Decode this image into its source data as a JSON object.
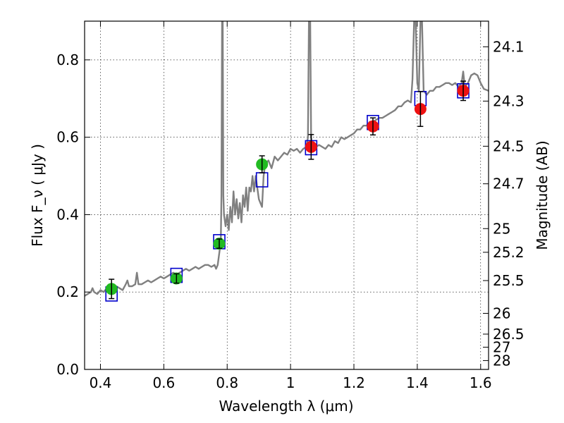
{
  "chart_data": {
    "type": "scatter",
    "xlabel": "Wavelength  λ (μm)",
    "ylabel": "Flux  F_ν  ( μJy )",
    "ylabel_right": "Magnitude (AB)",
    "xlim": [
      0.35,
      1.625
    ],
    "ylim": [
      0.0,
      0.9
    ],
    "grid": true,
    "x_ticks": [
      0.4,
      0.6,
      0.8,
      1.0,
      1.2,
      1.4,
      1.6
    ],
    "x_tick_labels": [
      "0.4",
      "0.6",
      "0.8",
      "1",
      "1.2",
      "1.4",
      "1.6"
    ],
    "y_ticks": [
      0.0,
      0.2,
      0.4,
      0.6,
      0.8
    ],
    "y_tick_labels": [
      "0.0",
      "0.2",
      "0.4",
      "0.6",
      "0.8"
    ],
    "right_ticks": [
      {
        "label": "24.1",
        "flux": 0.8337
      },
      {
        "label": "24.3",
        "flux": 0.6934
      },
      {
        "label": "24.5",
        "flux": 0.5768
      },
      {
        "label": "24.7",
        "flux": 0.4797
      },
      {
        "label": "25",
        "flux": 0.3639
      },
      {
        "label": "25.2",
        "flux": 0.3027
      },
      {
        "label": "25.5",
        "flux": 0.2296
      },
      {
        "label": "26",
        "flux": 0.1449
      },
      {
        "label": "26.5",
        "flux": 0.0912
      },
      {
        "label": "27",
        "flux": 0.0575
      },
      {
        "label": "28",
        "flux": 0.0229
      }
    ],
    "series": [
      {
        "kind": "model_spectrum",
        "color": "#808080",
        "points": [
          [
            0.35,
            0.19
          ],
          [
            0.36,
            0.195
          ],
          [
            0.37,
            0.2
          ],
          [
            0.375,
            0.21
          ],
          [
            0.38,
            0.2
          ],
          [
            0.39,
            0.195
          ],
          [
            0.4,
            0.205
          ],
          [
            0.41,
            0.2
          ],
          [
            0.42,
            0.21
          ],
          [
            0.43,
            0.2
          ],
          [
            0.44,
            0.205
          ],
          [
            0.45,
            0.215
          ],
          [
            0.46,
            0.21
          ],
          [
            0.47,
            0.205
          ],
          [
            0.48,
            0.22
          ],
          [
            0.485,
            0.23
          ],
          [
            0.49,
            0.215
          ],
          [
            0.5,
            0.215
          ],
          [
            0.51,
            0.22
          ],
          [
            0.515,
            0.25
          ],
          [
            0.52,
            0.22
          ],
          [
            0.53,
            0.22
          ],
          [
            0.54,
            0.225
          ],
          [
            0.55,
            0.23
          ],
          [
            0.56,
            0.225
          ],
          [
            0.57,
            0.23
          ],
          [
            0.58,
            0.235
          ],
          [
            0.59,
            0.24
          ],
          [
            0.6,
            0.235
          ],
          [
            0.61,
            0.24
          ],
          [
            0.62,
            0.245
          ],
          [
            0.63,
            0.25
          ],
          [
            0.64,
            0.245
          ],
          [
            0.65,
            0.25
          ],
          [
            0.66,
            0.255
          ],
          [
            0.67,
            0.26
          ],
          [
            0.68,
            0.255
          ],
          [
            0.69,
            0.26
          ],
          [
            0.7,
            0.265
          ],
          [
            0.71,
            0.26
          ],
          [
            0.72,
            0.265
          ],
          [
            0.73,
            0.27
          ],
          [
            0.74,
            0.27
          ],
          [
            0.75,
            0.265
          ],
          [
            0.76,
            0.27
          ],
          [
            0.765,
            0.26
          ],
          [
            0.77,
            0.27
          ],
          [
            0.775,
            0.3
          ],
          [
            0.78,
            0.33
          ],
          [
            0.782,
            0.45
          ],
          [
            0.784,
            0.9
          ],
          [
            0.786,
            0.9
          ],
          [
            0.788,
            0.45
          ],
          [
            0.79,
            0.4
          ],
          [
            0.795,
            0.37
          ],
          [
            0.8,
            0.4
          ],
          [
            0.805,
            0.36
          ],
          [
            0.81,
            0.42
          ],
          [
            0.815,
            0.38
          ],
          [
            0.82,
            0.46
          ],
          [
            0.825,
            0.4
          ],
          [
            0.83,
            0.44
          ],
          [
            0.835,
            0.39
          ],
          [
            0.84,
            0.43
          ],
          [
            0.845,
            0.38
          ],
          [
            0.85,
            0.45
          ],
          [
            0.855,
            0.42
          ],
          [
            0.86,
            0.47
          ],
          [
            0.865,
            0.41
          ],
          [
            0.87,
            0.47
          ],
          [
            0.875,
            0.46
          ],
          [
            0.88,
            0.5
          ],
          [
            0.885,
            0.46
          ],
          [
            0.89,
            0.5
          ],
          [
            0.895,
            0.47
          ],
          [
            0.9,
            0.44
          ],
          [
            0.905,
            0.43
          ],
          [
            0.91,
            0.42
          ],
          [
            0.915,
            0.5
          ],
          [
            0.92,
            0.53
          ],
          [
            0.93,
            0.54
          ],
          [
            0.94,
            0.52
          ],
          [
            0.95,
            0.55
          ],
          [
            0.96,
            0.54
          ],
          [
            0.97,
            0.55
          ],
          [
            0.98,
            0.56
          ],
          [
            0.99,
            0.555
          ],
          [
            1.0,
            0.57
          ],
          [
            1.01,
            0.565
          ],
          [
            1.02,
            0.57
          ],
          [
            1.03,
            0.56
          ],
          [
            1.04,
            0.57
          ],
          [
            1.05,
            0.575
          ],
          [
            1.055,
            0.6
          ],
          [
            1.058,
            0.9
          ],
          [
            1.062,
            0.9
          ],
          [
            1.065,
            0.6
          ],
          [
            1.07,
            0.57
          ],
          [
            1.08,
            0.575
          ],
          [
            1.09,
            0.58
          ],
          [
            1.1,
            0.575
          ],
          [
            1.11,
            0.57
          ],
          [
            1.12,
            0.58
          ],
          [
            1.13,
            0.575
          ],
          [
            1.14,
            0.59
          ],
          [
            1.15,
            0.585
          ],
          [
            1.16,
            0.6
          ],
          [
            1.17,
            0.595
          ],
          [
            1.18,
            0.6
          ],
          [
            1.19,
            0.605
          ],
          [
            1.2,
            0.61
          ],
          [
            1.21,
            0.62
          ],
          [
            1.22,
            0.62
          ],
          [
            1.23,
            0.63
          ],
          [
            1.24,
            0.63
          ],
          [
            1.25,
            0.64
          ],
          [
            1.26,
            0.64
          ],
          [
            1.27,
            0.645
          ],
          [
            1.28,
            0.65
          ],
          [
            1.29,
            0.65
          ],
          [
            1.3,
            0.655
          ],
          [
            1.31,
            0.66
          ],
          [
            1.32,
            0.665
          ],
          [
            1.33,
            0.67
          ],
          [
            1.34,
            0.68
          ],
          [
            1.35,
            0.68
          ],
          [
            1.36,
            0.69
          ],
          [
            1.37,
            0.695
          ],
          [
            1.38,
            0.69
          ],
          [
            1.385,
            0.75
          ],
          [
            1.39,
            0.9
          ],
          [
            1.395,
            0.9
          ],
          [
            1.4,
            0.74
          ],
          [
            1.405,
            0.72
          ],
          [
            1.41,
            0.9
          ],
          [
            1.415,
            0.9
          ],
          [
            1.42,
            0.72
          ],
          [
            1.43,
            0.71
          ],
          [
            1.44,
            0.72
          ],
          [
            1.45,
            0.72
          ],
          [
            1.46,
            0.73
          ],
          [
            1.47,
            0.73
          ],
          [
            1.48,
            0.735
          ],
          [
            1.49,
            0.74
          ],
          [
            1.5,
            0.74
          ],
          [
            1.51,
            0.735
          ],
          [
            1.52,
            0.74
          ],
          [
            1.53,
            0.73
          ],
          [
            1.54,
            0.74
          ],
          [
            1.545,
            0.77
          ],
          [
            1.55,
            0.73
          ],
          [
            1.56,
            0.74
          ],
          [
            1.57,
            0.76
          ],
          [
            1.58,
            0.765
          ],
          [
            1.59,
            0.76
          ],
          [
            1.6,
            0.74
          ],
          [
            1.61,
            0.725
          ],
          [
            1.625,
            0.72
          ]
        ]
      },
      {
        "kind": "model_photometry",
        "marker": "open-square",
        "color": "#0000cc",
        "points": [
          {
            "x": 0.435,
            "y": 0.195
          },
          {
            "x": 0.64,
            "y": 0.243
          },
          {
            "x": 0.775,
            "y": 0.33
          },
          {
            "x": 0.91,
            "y": 0.49
          },
          {
            "x": 1.065,
            "y": 0.573
          },
          {
            "x": 1.26,
            "y": 0.638
          },
          {
            "x": 1.41,
            "y": 0.7
          },
          {
            "x": 1.545,
            "y": 0.72
          }
        ]
      },
      {
        "kind": "observed_optical",
        "marker": "filled-circle",
        "color": "#22bb22",
        "points": [
          {
            "x": 0.435,
            "y": 0.208,
            "err": 0.025
          },
          {
            "x": 0.64,
            "y": 0.235,
            "err": 0.012
          },
          {
            "x": 0.775,
            "y": 0.325,
            "err": 0.012
          },
          {
            "x": 0.91,
            "y": 0.53,
            "err": 0.022
          }
        ]
      },
      {
        "kind": "observed_nir",
        "marker": "filled-circle",
        "color": "#ee1111",
        "points": [
          {
            "x": 1.065,
            "y": 0.575,
            "err": 0.032
          },
          {
            "x": 1.26,
            "y": 0.628,
            "err": 0.022
          },
          {
            "x": 1.41,
            "y": 0.673,
            "err": 0.045
          },
          {
            "x": 1.545,
            "y": 0.72,
            "err": 0.025
          }
        ]
      }
    ]
  }
}
